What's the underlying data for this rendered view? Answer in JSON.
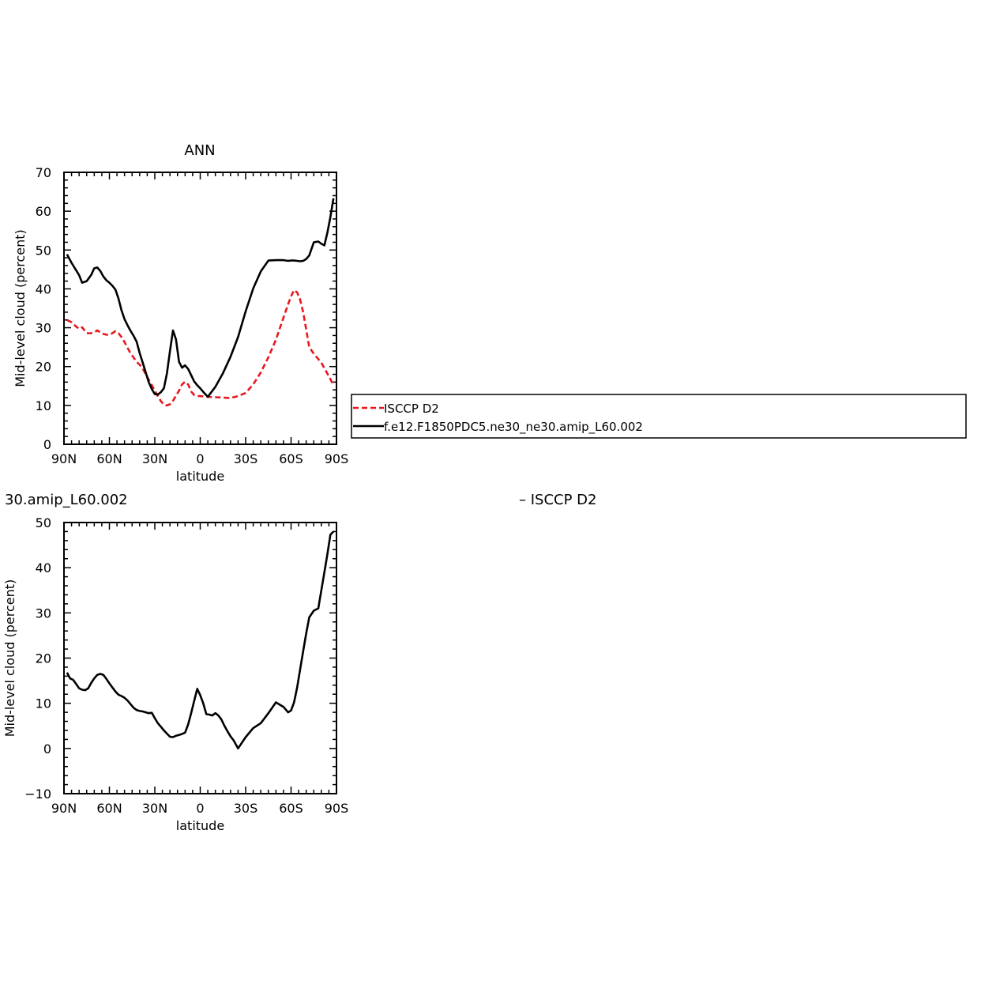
{
  "chart_data": [
    {
      "type": "line",
      "title": "ANN",
      "xlabel": "latitude",
      "ylabel": "Mid-level cloud (percent)",
      "xlim": [
        90,
        -90
      ],
      "ylim": [
        0,
        70
      ],
      "xticks": [
        90,
        60,
        30,
        0,
        -30,
        -60,
        -90
      ],
      "xticklabels": [
        "90N",
        "60N",
        "30N",
        "0",
        "30S",
        "60S",
        "90S"
      ],
      "yticks": [
        0,
        10,
        20,
        30,
        40,
        50,
        60,
        70
      ],
      "grid": false,
      "legend": "right",
      "series": [
        {
          "name": "ISCCP D2",
          "color": "#e8171e",
          "style": "dashed",
          "x": [
            88,
            85,
            82,
            80,
            78,
            75,
            72,
            70,
            68,
            66,
            64,
            62,
            60,
            58,
            56,
            54,
            52,
            50,
            48,
            46,
            44,
            42,
            40,
            38,
            36,
            34,
            32,
            30,
            28,
            26,
            24,
            22,
            20,
            18,
            16,
            14,
            12,
            10,
            8,
            6,
            4,
            2,
            0,
            -5,
            -10,
            -15,
            -20,
            -25,
            -30,
            -35,
            -40,
            -45,
            -50,
            -55,
            -58,
            -60,
            -62,
            -64,
            -66,
            -68,
            -70,
            -72,
            -75,
            -80,
            -85,
            -88
          ],
          "values": [
            32.0,
            31.4,
            30.3,
            29.7,
            30.1,
            28.6,
            28.6,
            28.8,
            29.3,
            28.8,
            28.4,
            28.2,
            28.2,
            28.6,
            29.1,
            28.6,
            27.6,
            26.3,
            24.8,
            23.4,
            22.3,
            21.2,
            20.5,
            19.5,
            18.0,
            16.6,
            15.2,
            13.8,
            12.4,
            11.1,
            10.2,
            10.0,
            10.3,
            11.2,
            12.5,
            13.8,
            15.4,
            16.1,
            15.4,
            13.6,
            12.7,
            12.4,
            12.4,
            12.2,
            12.1,
            12.0,
            11.9,
            12.4,
            13.2,
            15.4,
            18.5,
            22.4,
            26.9,
            32.6,
            36.0,
            38.1,
            39.7,
            39.1,
            37.2,
            34.0,
            29.5,
            25.0,
            23.3,
            21.0,
            17.5,
            15.2
          ]
        },
        {
          "name": "f.e12.F1850PDC5.ne30_ne30.amip_L60.002",
          "color": "#000000",
          "style": "solid",
          "x": [
            88,
            85,
            82,
            80,
            78,
            75,
            72,
            70,
            68,
            66,
            64,
            62,
            60,
            58,
            56,
            54,
            52,
            50,
            48,
            46,
            44,
            42,
            40,
            38,
            36,
            34,
            32,
            30,
            28,
            26,
            24,
            22,
            20,
            18,
            16,
            14,
            12,
            10,
            8,
            6,
            4,
            2,
            0,
            -2,
            -5,
            -10,
            -15,
            -20,
            -25,
            -30,
            -35,
            -40,
            -45,
            -50,
            -55,
            -58,
            -60,
            -62,
            -64,
            -66,
            -68,
            -70,
            -72,
            -75,
            -78,
            -80,
            -82,
            -84,
            -86,
            -88
          ],
          "values": [
            48.9,
            46.7,
            44.8,
            43.5,
            41.6,
            42.0,
            43.6,
            45.3,
            45.5,
            44.6,
            43.2,
            42.2,
            41.6,
            40.8,
            39.8,
            37.5,
            34.5,
            32.2,
            30.6,
            29.2,
            27.9,
            26.4,
            23.5,
            21.0,
            18.5,
            16.0,
            14.2,
            12.9,
            12.8,
            13.4,
            14.4,
            18.2,
            24.0,
            29.3,
            27.0,
            21.2,
            19.7,
            20.3,
            19.4,
            17.8,
            16.2,
            15.2,
            14.4,
            13.5,
            12.2,
            14.8,
            18.3,
            22.5,
            27.6,
            34.2,
            40.1,
            44.5,
            47.3,
            47.4,
            47.4,
            47.2,
            47.3,
            47.3,
            47.2,
            47.1,
            47.2,
            47.7,
            48.6,
            52.0,
            52.2,
            51.6,
            51.2,
            54.5,
            58.5,
            63.3
          ]
        }
      ]
    },
    {
      "type": "line",
      "title": "30.amip_L60.002",
      "subtitle": "– ISCCP D2",
      "xlabel": "latitude",
      "ylabel": "Mid-level cloud (percent)",
      "xlim": [
        90,
        -90
      ],
      "ylim": [
        -10,
        50
      ],
      "xticks": [
        90,
        60,
        30,
        0,
        -30,
        -60,
        -90
      ],
      "xticklabels": [
        "90N",
        "60N",
        "30N",
        "0",
        "30S",
        "60S",
        "90S"
      ],
      "yticks": [
        -10,
        0,
        10,
        20,
        30,
        40,
        50
      ],
      "ytickmarks": [
        -10,
        0,
        10,
        20,
        30,
        40,
        50
      ],
      "yticklabels": [
        "−10",
        "0",
        "10",
        "20",
        "30",
        "40",
        "50"
      ],
      "grid": false,
      "series": [
        {
          "color": "#000000",
          "style": "solid",
          "x": [
            88,
            86,
            84,
            82,
            80,
            78,
            76,
            74,
            72,
            70,
            68,
            66,
            64,
            62,
            60,
            58,
            56,
            54,
            52,
            50,
            48,
            46,
            44,
            42,
            40,
            38,
            36,
            34,
            32,
            30,
            28,
            26,
            24,
            22,
            20,
            18,
            16,
            14,
            12,
            10,
            8,
            6,
            4,
            2,
            0,
            -2,
            -4,
            -6,
            -8,
            -10,
            -12,
            -14,
            -16,
            -18,
            -20,
            -22,
            -25,
            -30,
            -35,
            -40,
            -45,
            -50,
            -55,
            -58,
            -60,
            -62,
            -64,
            -66,
            -68,
            -70,
            -72,
            -75,
            -78,
            -80,
            -82,
            -84,
            -86,
            -88
          ],
          "values": [
            16.8,
            15.5,
            15.2,
            14.3,
            13.3,
            13.0,
            12.9,
            13.3,
            14.5,
            15.5,
            16.3,
            16.5,
            16.3,
            15.4,
            14.4,
            13.5,
            12.6,
            11.9,
            11.6,
            11.2,
            10.6,
            9.8,
            9.0,
            8.5,
            8.3,
            8.2,
            8.0,
            7.8,
            7.9,
            6.7,
            5.6,
            4.8,
            4.0,
            3.3,
            2.6,
            2.5,
            2.8,
            3.0,
            3.2,
            3.5,
            5.3,
            7.8,
            10.5,
            13.2,
            11.8,
            10.0,
            7.6,
            7.5,
            7.3,
            7.8,
            7.3,
            6.4,
            5.0,
            3.8,
            2.7,
            1.8,
            0.0,
            2.5,
            4.5,
            5.6,
            7.8,
            10.2,
            9.2,
            8.0,
            8.4,
            10.2,
            13.5,
            17.5,
            21.5,
            25.5,
            29.0,
            30.5,
            31.0,
            35.0,
            39.0,
            43.0,
            47.3,
            48.0
          ]
        }
      ]
    }
  ]
}
